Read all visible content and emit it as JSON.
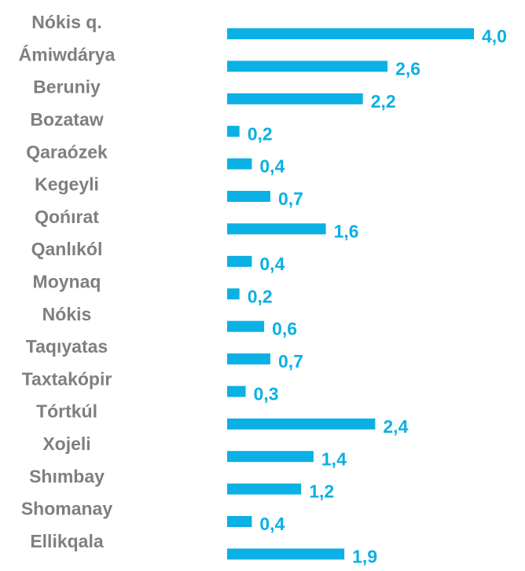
{
  "chart_data": {
    "type": "bar",
    "orientation": "horizontal",
    "color": "#0bb0e4",
    "categories": [
      "Nókis q.",
      "Ámiwdárya",
      "Beruniy",
      "Bozataw",
      "Qaraózek",
      "Kegeyli",
      "Qońırat",
      "Qanlıkól",
      "Moynaq",
      "Nókis",
      "Taqıyatas",
      "Taxtakópir",
      "Tórtkúl",
      "Xojeli",
      "Shımbay",
      "Shomanay",
      "Ellikqala"
    ],
    "values": [
      4.0,
      2.6,
      2.2,
      0.2,
      0.4,
      0.7,
      1.6,
      0.4,
      0.2,
      0.6,
      0.7,
      0.3,
      2.4,
      1.4,
      1.2,
      0.4,
      1.9
    ],
    "value_labels": [
      "4,0",
      "2,6",
      "2,2",
      "0,2",
      "0,4",
      "0,7",
      "1,6",
      "0,4",
      "0,2",
      "0,6",
      "0,7",
      "0,3",
      "2,4",
      "1,4",
      "1,2",
      "0,4",
      "1,9"
    ]
  }
}
